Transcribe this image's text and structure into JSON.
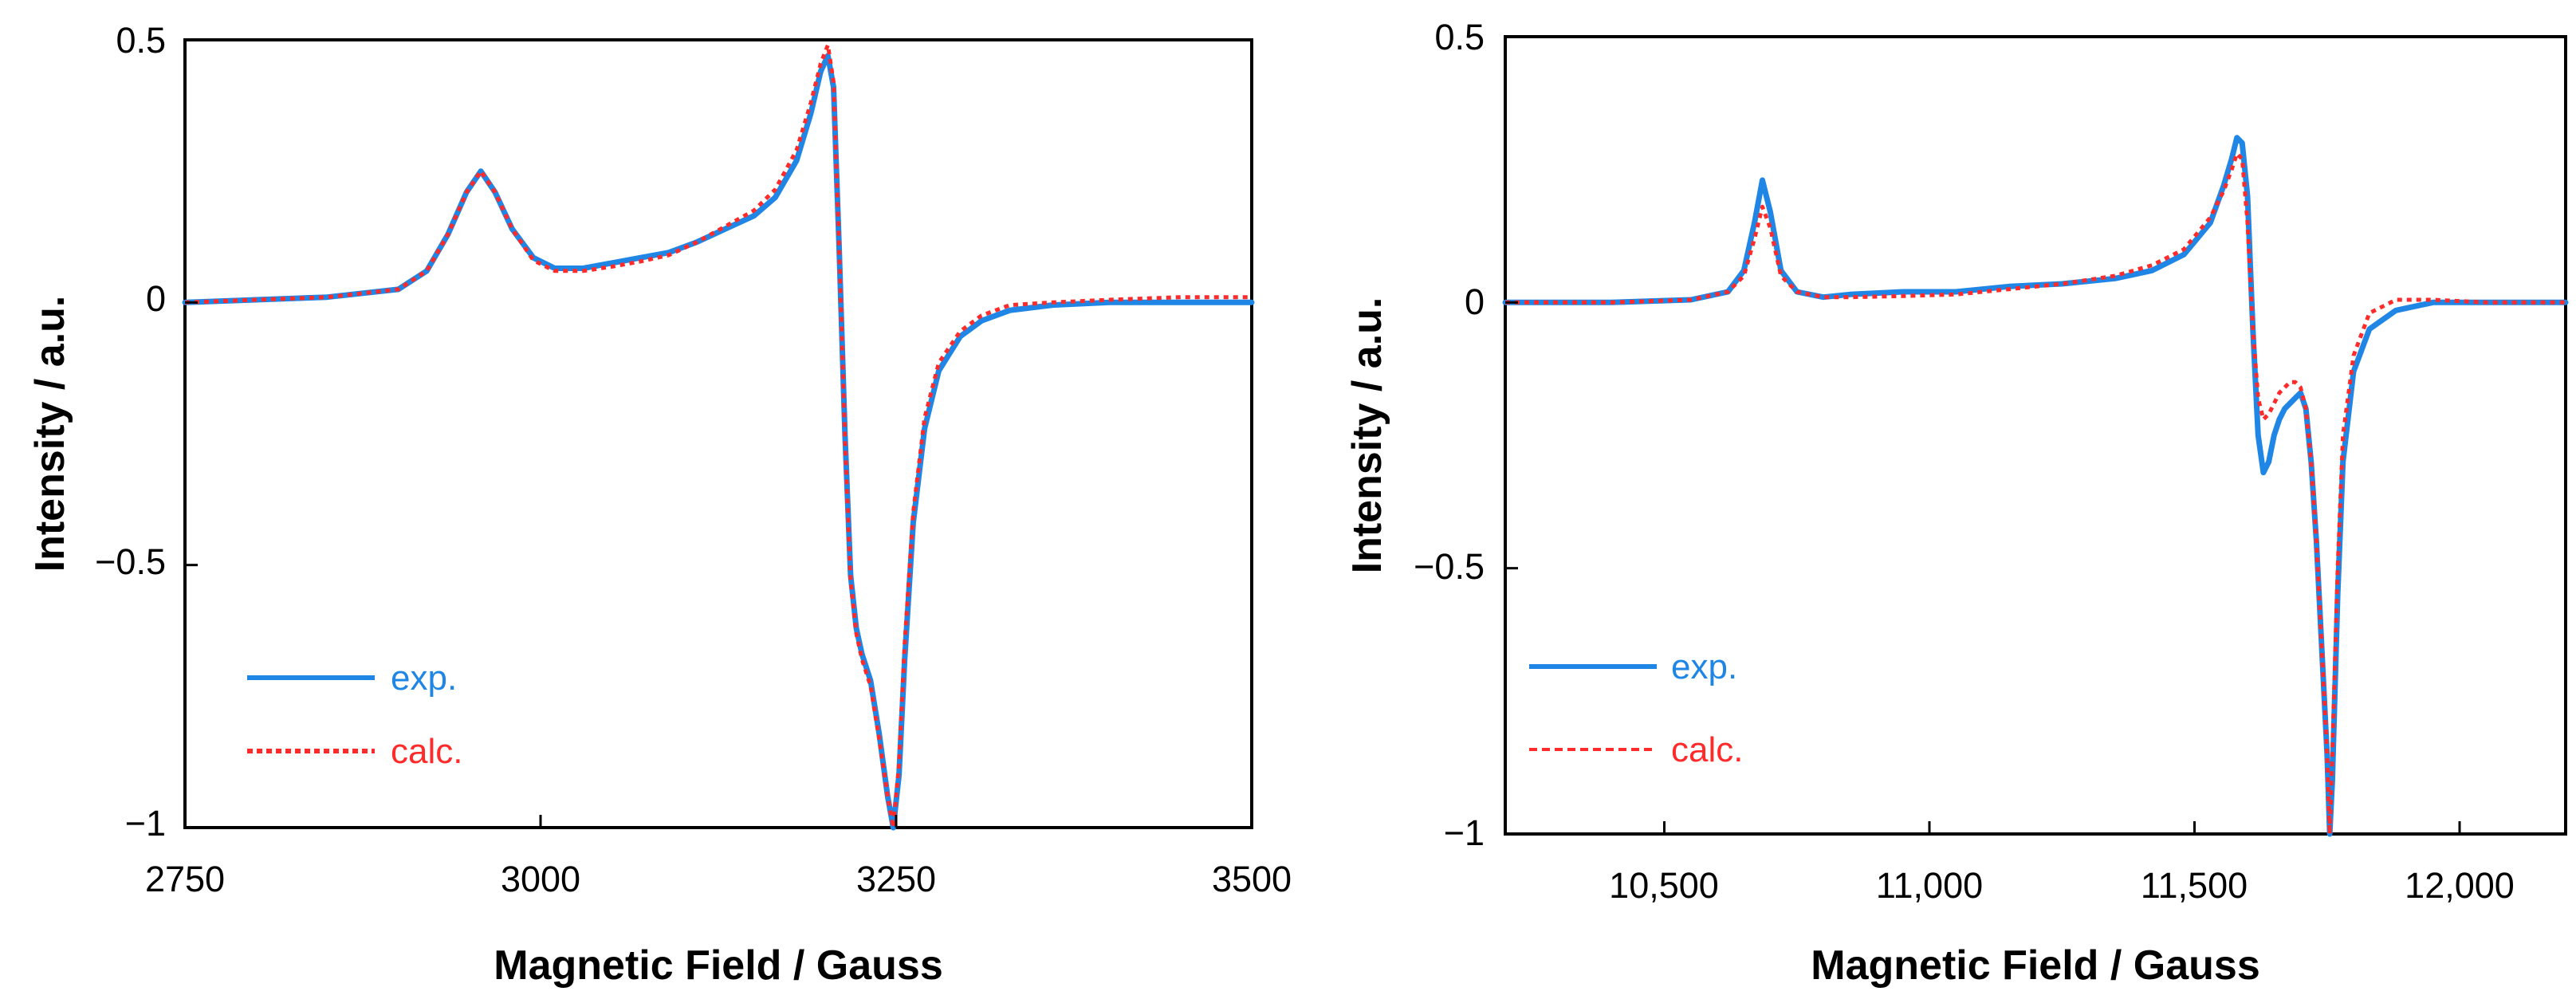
{
  "colors": {
    "exp": "#1f86e6",
    "calc": "#ff2a2a",
    "axis": "#000000"
  },
  "chart_data": [
    {
      "type": "line",
      "title": "",
      "xlabel": "Magnetic Field / Gauss",
      "ylabel": "Intensity  / a.u.",
      "xlim": [
        2750,
        3500
      ],
      "ylim": [
        -1,
        0.5
      ],
      "xticks": [
        2750,
        3000,
        3250,
        3500
      ],
      "xtick_labels": [
        "2750",
        "3000",
        "3250",
        "3500"
      ],
      "yticks": [
        0.5,
        0,
        -0.5,
        -1
      ],
      "ytick_labels": [
        "0.5",
        "0",
        "−0.5",
        "−1"
      ],
      "legend": [
        "exp.",
        "calc."
      ],
      "legend_position": "bottom-left",
      "series": [
        {
          "name": "exp.",
          "style": "solid",
          "x": [
            2750,
            2800,
            2850,
            2900,
            2920,
            2935,
            2948,
            2958,
            2968,
            2980,
            2995,
            3010,
            3030,
            3050,
            3070,
            3090,
            3110,
            3130,
            3150,
            3165,
            3180,
            3190,
            3197,
            3202,
            3206,
            3210,
            3214,
            3218,
            3222,
            3226,
            3232,
            3238,
            3244,
            3248,
            3252,
            3256,
            3262,
            3270,
            3280,
            3295,
            3310,
            3330,
            3360,
            3400,
            3450,
            3500
          ],
          "y": [
            0,
            0.005,
            0.01,
            0.025,
            0.06,
            0.13,
            0.21,
            0.25,
            0.21,
            0.14,
            0.085,
            0.065,
            0.065,
            0.075,
            0.085,
            0.095,
            0.115,
            0.14,
            0.165,
            0.2,
            0.27,
            0.36,
            0.44,
            0.47,
            0.41,
            0.1,
            -0.25,
            -0.52,
            -0.62,
            -0.67,
            -0.72,
            -0.82,
            -0.94,
            -1.0,
            -0.9,
            -0.68,
            -0.42,
            -0.24,
            -0.13,
            -0.065,
            -0.035,
            -0.015,
            -0.005,
            0.0,
            0.0,
            0.0
          ]
        },
        {
          "name": "calc.",
          "style": "dotted",
          "x": [
            2750,
            2800,
            2850,
            2900,
            2920,
            2935,
            2948,
            2958,
            2968,
            2980,
            2995,
            3010,
            3030,
            3050,
            3070,
            3090,
            3110,
            3130,
            3150,
            3165,
            3180,
            3190,
            3197,
            3202,
            3206,
            3210,
            3214,
            3218,
            3222,
            3226,
            3232,
            3238,
            3244,
            3248,
            3252,
            3256,
            3262,
            3270,
            3280,
            3295,
            3310,
            3330,
            3360,
            3400,
            3450,
            3500
          ],
          "y": [
            0,
            0.005,
            0.01,
            0.025,
            0.06,
            0.13,
            0.21,
            0.25,
            0.21,
            0.14,
            0.08,
            0.06,
            0.06,
            0.068,
            0.078,
            0.09,
            0.115,
            0.145,
            0.175,
            0.215,
            0.29,
            0.38,
            0.455,
            0.49,
            0.42,
            0.1,
            -0.26,
            -0.53,
            -0.63,
            -0.68,
            -0.73,
            -0.83,
            -0.94,
            -1.0,
            -0.88,
            -0.65,
            -0.4,
            -0.22,
            -0.115,
            -0.055,
            -0.025,
            -0.005,
            0.0,
            0.005,
            0.01,
            0.01
          ]
        }
      ]
    },
    {
      "type": "line",
      "title": "",
      "xlabel": "Magnetic Field / Gauss",
      "ylabel": "Intensity  / a.u.",
      "xlim": [
        10200,
        12200
      ],
      "ylim": [
        -1,
        0.5
      ],
      "xticks": [
        10500,
        11000,
        11500,
        12000
      ],
      "xtick_labels": [
        "10,500",
        "11,000",
        "11,500",
        "12,000"
      ],
      "yticks": [
        0.5,
        0,
        -0.5,
        -1
      ],
      "ytick_labels": [
        "0.5",
        "0",
        "−0.5",
        "−1"
      ],
      "legend": [
        "exp.",
        "calc."
      ],
      "legend_position": "bottom-left",
      "series": [
        {
          "name": "exp.",
          "style": "solid",
          "x": [
            10200,
            10400,
            10550,
            10620,
            10650,
            10670,
            10685,
            10700,
            10720,
            10750,
            10800,
            10850,
            10950,
            11050,
            11150,
            11250,
            11350,
            11420,
            11480,
            11530,
            11555,
            11570,
            11580,
            11590,
            11600,
            11610,
            11620,
            11630,
            11640,
            11650,
            11660,
            11670,
            11680,
            11690,
            11700,
            11710,
            11720,
            11730,
            11740,
            11750,
            11755,
            11760,
            11770,
            11780,
            11800,
            11830,
            11880,
            11950,
            12050,
            12200
          ],
          "y": [
            0,
            0,
            0.005,
            0.02,
            0.06,
            0.15,
            0.23,
            0.17,
            0.06,
            0.02,
            0.01,
            0.015,
            0.02,
            0.02,
            0.03,
            0.035,
            0.045,
            0.06,
            0.09,
            0.15,
            0.22,
            0.27,
            0.31,
            0.3,
            0.2,
            -0.05,
            -0.25,
            -0.32,
            -0.3,
            -0.25,
            -0.22,
            -0.2,
            -0.19,
            -0.18,
            -0.17,
            -0.2,
            -0.3,
            -0.45,
            -0.65,
            -0.85,
            -1.0,
            -0.9,
            -0.55,
            -0.3,
            -0.13,
            -0.05,
            -0.015,
            0.0,
            0.0,
            0.0
          ]
        },
        {
          "name": "calc.",
          "style": "dotted",
          "x": [
            10200,
            10400,
            10550,
            10620,
            10650,
            10670,
            10685,
            10700,
            10720,
            10750,
            10800,
            10850,
            10950,
            11050,
            11150,
            11250,
            11350,
            11420,
            11480,
            11530,
            11555,
            11570,
            11580,
            11590,
            11600,
            11610,
            11620,
            11630,
            11640,
            11650,
            11660,
            11670,
            11680,
            11690,
            11700,
            11710,
            11720,
            11730,
            11740,
            11750,
            11755,
            11760,
            11770,
            11780,
            11800,
            11830,
            11880,
            11950,
            12050,
            12200
          ],
          "y": [
            0,
            0,
            0.005,
            0.02,
            0.05,
            0.12,
            0.18,
            0.14,
            0.05,
            0.02,
            0.01,
            0.01,
            0.012,
            0.015,
            0.025,
            0.035,
            0.05,
            0.07,
            0.1,
            0.16,
            0.21,
            0.25,
            0.28,
            0.27,
            0.15,
            -0.05,
            -0.18,
            -0.22,
            -0.21,
            -0.19,
            -0.17,
            -0.16,
            -0.15,
            -0.15,
            -0.16,
            -0.2,
            -0.3,
            -0.45,
            -0.65,
            -0.85,
            -1.0,
            -0.85,
            -0.5,
            -0.25,
            -0.1,
            -0.02,
            0.005,
            0.005,
            0.0,
            0.0
          ]
        }
      ]
    }
  ]
}
